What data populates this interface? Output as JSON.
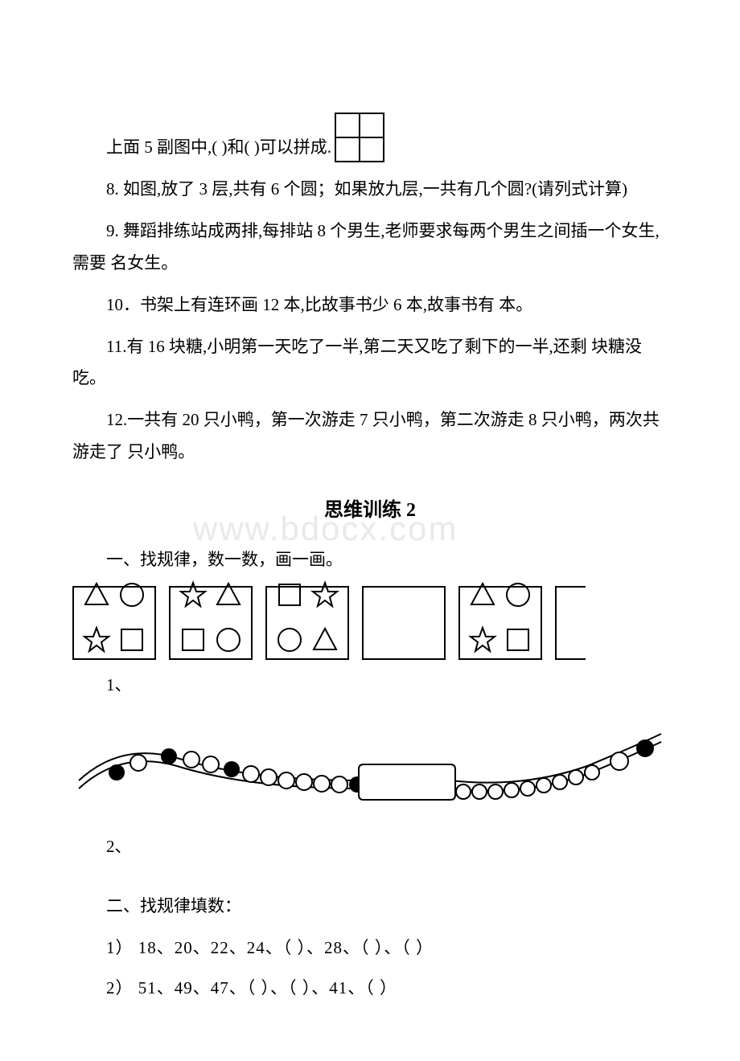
{
  "watermark": "www.bdocx.com",
  "q7": {
    "text": "上面 5 副图中,( )和( )可以拼成.",
    "grid": {
      "rows": 2,
      "cols": 2,
      "cell": 30,
      "stroke": "#000000"
    }
  },
  "q8": "8. 如图,放了 3 层,共有 6 个圆；如果放九层,一共有几个圆?(请列式计算)",
  "q9": "9. 舞蹈排练站成两排,每排站 8 个男生,老师要求每两个男生之间插一个女生,需要 名女生。",
  "q10": "10．书架上有连环画 12 本,比故事书少 6 本,故事书有 本。",
  "q11": "11.有 16 块糖,小明第一天吃了一半,第二天又吃了剩下的一半,还剩 块糖没吃。",
  "q12": "12.一共有 20 只小鸭，第一次游走 7 只小鸭，第二次游走 8 只小鸭，两次共游走了 只小鸭。",
  "set2": {
    "title": "思维训练 2",
    "section1_heading": "一、找规律，数一数，画一画。",
    "label1": "1、",
    "label2": "2、",
    "boxes": [
      [
        "triangle",
        "circle",
        "star",
        "square"
      ],
      [
        "star",
        "triangle",
        "square",
        "circle"
      ],
      [
        "square",
        "star",
        "circle",
        "triangle"
      ],
      [],
      [
        "triangle",
        "circle",
        "star",
        "square"
      ],
      []
    ],
    "shape_stroke": "#000000",
    "section2_heading": "二、找规律填数：",
    "seq1": "1） 18、20、22、24、（ ）、28、（ ）、（ ）",
    "seq2": "2） 51、49、47、（ ）、（ ）、41、（ ）"
  },
  "colors": {
    "text": "#000000",
    "bg": "#ffffff",
    "watermark": "#e9e9e9"
  }
}
